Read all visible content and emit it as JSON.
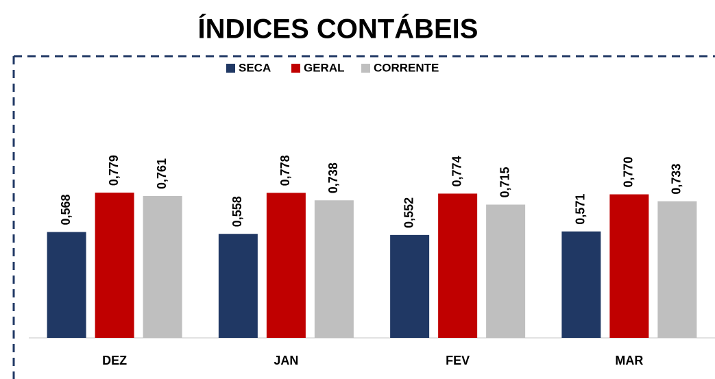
{
  "chart_data": {
    "type": "bar",
    "title": "ÍNDICES CONTÁBEIS",
    "categories": [
      "DEZ",
      "JAN",
      "FEV",
      "MAR"
    ],
    "series": [
      {
        "name": "SECA",
        "color": "#203864",
        "values": [
          0.568,
          0.558,
          0.552,
          0.571
        ],
        "value_labels": [
          "0,568",
          "0,558",
          "0,552",
          "0,571"
        ]
      },
      {
        "name": "GERAL",
        "color": "#c00000",
        "values": [
          0.779,
          0.778,
          0.774,
          0.77
        ],
        "value_labels": [
          "0,779",
          "0,778",
          "0,774",
          "0,770"
        ]
      },
      {
        "name": "CORRENTE",
        "color": "#bfbfbf",
        "values": [
          0.761,
          0.738,
          0.715,
          0.733
        ],
        "value_labels": [
          "0,761",
          "0,738",
          "0,715",
          "0,733"
        ]
      }
    ],
    "ylim": [
      0,
      1
    ],
    "legend": "top"
  }
}
